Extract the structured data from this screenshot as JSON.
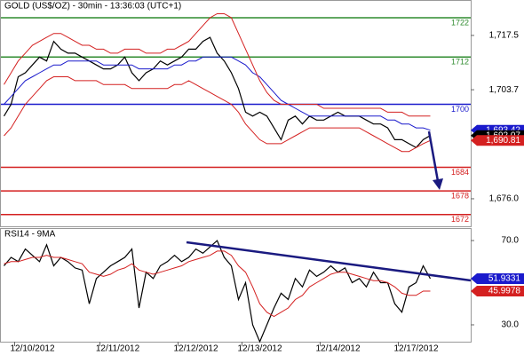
{
  "chart_data": [
    {
      "type": "line",
      "title": "GOLD (US$/OZ) - 30min - 13:36:03 (UTC+1)",
      "ylim": [
        1669.0,
        1726.5
      ],
      "yticks": [
        {
          "value": 1717.5,
          "label": "1,717.5"
        },
        {
          "value": 1703.7,
          "label": "1,703.7"
        },
        {
          "value": 1676.0,
          "label": "1,676.0"
        }
      ],
      "levels": [
        {
          "value": 1722,
          "color": "#2e8b2e"
        },
        {
          "value": 1712,
          "color": "#2e8b2e"
        },
        {
          "value": 1700,
          "color": "#1a1acc"
        },
        {
          "value": 1684,
          "color": "#d42020"
        },
        {
          "value": 1678,
          "color": "#d42020"
        },
        {
          "value": 1672,
          "color": "#d42020"
        }
      ],
      "markers": [
        {
          "value": 1693.42,
          "label": "1,693.42",
          "color": "#1a1acc"
        },
        {
          "value": 1692.07,
          "label": "1,692.07",
          "color": "#000000"
        },
        {
          "value": 1690.81,
          "label": "1,690.81",
          "color": "#d42020"
        }
      ],
      "series": [
        {
          "color": "#000000",
          "values": [
            1697,
            1700,
            1707,
            1708,
            1710,
            1712,
            1711,
            1716,
            1714,
            1713,
            1713,
            1712,
            1711,
            1710,
            1709,
            1709,
            1710,
            1712,
            1708,
            1706,
            1708,
            1709,
            1711,
            1710,
            1711,
            1712,
            1714,
            1714,
            1716,
            1717,
            1713,
            1711,
            1708,
            1704,
            1698,
            1697,
            1698,
            1697,
            1694,
            1691,
            1696,
            1697,
            1695,
            1697,
            1696,
            1696,
            1697,
            1698,
            1697,
            1697,
            1697,
            1696,
            1695,
            1695,
            1694,
            1691,
            1691,
            1690,
            1689,
            1691,
            1692.07
          ]
        },
        {
          "color": "#1a1acc",
          "values": [
            1700,
            1702,
            1704,
            1706,
            1707,
            1708,
            1709,
            1710,
            1710,
            1711,
            1711,
            1711,
            1711,
            1711,
            1710,
            1710,
            1710,
            1710,
            1710,
            1709,
            1709,
            1709,
            1709,
            1709,
            1710,
            1710,
            1711,
            1711,
            1712,
            1712,
            1712,
            1712,
            1712,
            1711,
            1710,
            1708,
            1707,
            1705,
            1703,
            1701,
            1700,
            1699,
            1698,
            1697,
            1697,
            1697,
            1697,
            1697,
            1697,
            1697,
            1697,
            1697,
            1697,
            1697,
            1696,
            1696,
            1695,
            1695,
            1694,
            1694,
            1693.42
          ]
        },
        {
          "color": "#d42020",
          "values": [
            1705,
            1708,
            1711,
            1713,
            1715,
            1716,
            1717,
            1718,
            1718,
            1717,
            1716,
            1715,
            1715,
            1714,
            1714,
            1713,
            1713,
            1714,
            1714,
            1714,
            1713,
            1713,
            1713,
            1714,
            1714,
            1715,
            1716,
            1718,
            1720,
            1722,
            1723,
            1723,
            1722,
            1718,
            1714,
            1710,
            1706,
            1703,
            1701,
            1700,
            1700,
            1700,
            1700,
            1700,
            1700,
            1699,
            1699,
            1699,
            1699,
            1699,
            1699,
            1699,
            1699,
            1699,
            1698,
            1698,
            1698,
            1697,
            1697,
            1697,
            1697
          ]
        },
        {
          "color": "#d42020",
          "values": [
            1692,
            1694,
            1697,
            1700,
            1702,
            1704,
            1706,
            1707,
            1707,
            1707,
            1706,
            1706,
            1706,
            1706,
            1705,
            1705,
            1705,
            1705,
            1704,
            1704,
            1704,
            1704,
            1704,
            1704,
            1705,
            1705,
            1706,
            1705,
            1704,
            1703,
            1702,
            1701,
            1700,
            1698,
            1695,
            1693,
            1691,
            1690,
            1690,
            1690,
            1691,
            1692,
            1693,
            1694,
            1694,
            1694,
            1694,
            1694,
            1694,
            1694,
            1694,
            1693,
            1692,
            1691,
            1690,
            1689,
            1688,
            1688,
            1689,
            1690,
            1690.81
          ]
        }
      ]
    },
    {
      "type": "line",
      "title": "RSI14 - 9MA",
      "ylim": [
        22,
        75.5
      ],
      "yticks": [
        {
          "value": 70,
          "label": "70.0"
        },
        {
          "value": 30,
          "label": "30.0"
        }
      ],
      "categories": [
        null,
        null,
        null,
        null,
        "12/10/2012",
        null,
        null,
        null,
        null,
        null,
        null,
        null,
        null,
        null,
        null,
        null,
        "12/11/2012",
        null,
        null,
        null,
        null,
        null,
        null,
        null,
        null,
        null,
        null,
        "12/12/2012",
        null,
        null,
        null,
        null,
        null,
        null,
        null,
        null,
        "12/13/2012",
        null,
        null,
        null,
        null,
        null,
        null,
        null,
        null,
        null,
        null,
        "12/14/2012",
        null,
        null,
        null,
        null,
        null,
        null,
        null,
        null,
        null,
        null,
        "12/17/2012",
        null,
        null
      ],
      "markers": [
        {
          "value": 51.9331,
          "label": "51.9331",
          "color": "#1a1acc"
        },
        {
          "value": 45.9978,
          "label": "45.9978",
          "color": "#d42020"
        }
      ],
      "series": [
        {
          "color": "#000000",
          "values": [
            58,
            62,
            60,
            66,
            63,
            60,
            68,
            58,
            62,
            60,
            57,
            56,
            40,
            52,
            55,
            58,
            60,
            62,
            66,
            38,
            55,
            52,
            58,
            60,
            63,
            60,
            62,
            66,
            64,
            67,
            70,
            62,
            58,
            42,
            50,
            30,
            22,
            30,
            38,
            45,
            42,
            52,
            48,
            56,
            53,
            55,
            58,
            55,
            57,
            50,
            52,
            48,
            55,
            50,
            50,
            40,
            36,
            48,
            50,
            58,
            51.9331
          ]
        },
        {
          "color": "#d42020",
          "values": [
            59,
            60,
            60,
            61,
            62,
            62,
            63,
            62,
            62,
            61,
            60,
            59,
            55,
            54,
            53,
            54,
            56,
            57,
            59,
            56,
            55,
            54,
            55,
            56,
            57,
            58,
            60,
            61,
            62,
            63,
            65,
            65,
            63,
            58,
            55,
            48,
            40,
            36,
            34,
            36,
            38,
            42,
            44,
            48,
            50,
            52,
            54,
            55,
            55,
            54,
            53,
            52,
            51,
            51,
            50,
            48,
            45,
            44,
            44,
            46,
            45.9978
          ]
        }
      ]
    }
  ]
}
